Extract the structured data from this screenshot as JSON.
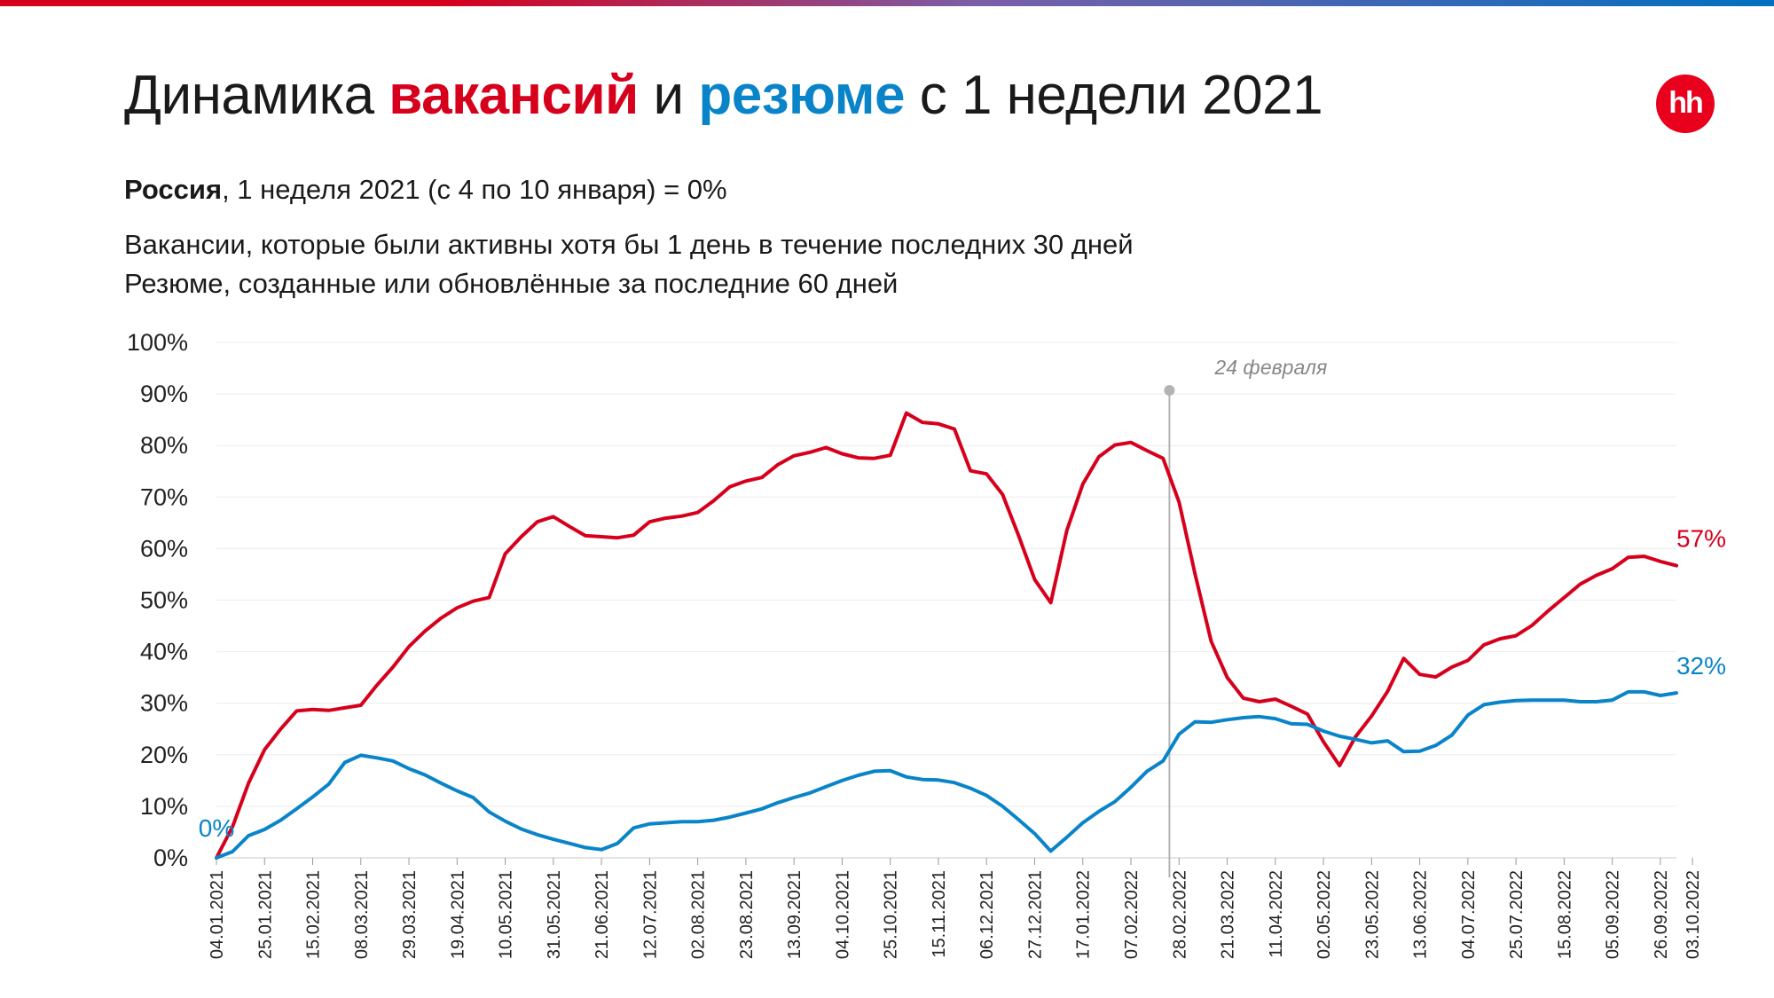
{
  "header": {
    "title_part1": "Динамика ",
    "title_vac": "вакансий",
    "title_part2": " и ",
    "title_res": "резюме",
    "title_part3": " с 1 недели 2021",
    "logo_text": "hh",
    "subtitle_region": "Россия",
    "subtitle_rest": ", 1 неделя 2021 (с 4 по 10 января) = 0%",
    "line1": "Вакансии, которые были активны хотя бы 1 день в течение последних 30 дней",
    "line2": "Резюме, созданные или обновлённые за последние 60 дней"
  },
  "colors": {
    "vacancies": "#d6001c",
    "resumes": "#0a84c8",
    "annotation": "#b3b3b3",
    "grid": "#ececec"
  },
  "chart_data": {
    "type": "line",
    "title": "Динамика вакансий и резюме с 1 недели 2021",
    "xlabel": "",
    "ylabel": "",
    "ylim": [
      0,
      100
    ],
    "y_ticks": [
      "0%",
      "10%",
      "20%",
      "30%",
      "40%",
      "50%",
      "60%",
      "70%",
      "80%",
      "90%",
      "100%"
    ],
    "x_tick_labels": [
      "04.01.2021",
      "25.01.2021",
      "15.02.2021",
      "08.03.2021",
      "29.03.2021",
      "19.04.2021",
      "10.05.2021",
      "31.05.2021",
      "21.06.2021",
      "12.07.2021",
      "02.08.2021",
      "23.08.2021",
      "13.09.2021",
      "04.10.2021",
      "25.10.2021",
      "15.11.2021",
      "06.12.2021",
      "27.12.2021",
      "17.01.2022",
      "07.02.2022",
      "28.02.2022",
      "21.03.2022",
      "11.04.2022",
      "02.05.2022",
      "23.05.2022",
      "13.06.2022",
      "04.07.2022",
      "25.07.2022",
      "15.08.2022",
      "05.09.2022",
      "26.09.2022",
      "03.10.2022"
    ],
    "annotation": {
      "label": "24 февраля",
      "week_index": 59.4
    },
    "start_label": "0%",
    "grid": true,
    "series": [
      {
        "key": "vacancies",
        "end_label": "57%",
        "values": [
          0,
          6,
          14.5,
          21,
          25,
          28.5,
          28.8,
          28.6,
          29.1,
          29.6,
          33.5,
          37,
          41,
          44,
          46.5,
          48.5,
          49.8,
          50.5,
          59,
          62.3,
          65.2,
          66.2,
          64.3,
          62.5,
          62.3,
          62.1,
          62.6,
          65.2,
          65.9,
          66.3,
          67,
          69.3,
          72,
          73.1,
          73.8,
          76.3,
          78,
          78.7,
          79.6,
          78.4,
          77.6,
          77.5,
          78.1,
          86.3,
          84.5,
          84.2,
          83.2,
          75.1,
          74.5,
          70.5,
          62.5,
          54,
          49.5,
          63.5,
          72.5,
          77.8,
          80.1,
          80.6,
          79,
          77.5,
          69,
          55,
          42,
          35,
          31,
          30.3,
          30.8,
          29.4,
          27.9,
          22.5,
          17.9,
          23.5,
          27.5,
          32.3,
          38.7,
          35.6,
          35.1,
          37,
          38.3,
          41.3,
          42.5,
          43.1,
          45.1,
          47.9,
          50.5,
          53.1,
          54.8,
          56.1,
          58.3,
          58.5,
          57.5,
          56.7
        ]
      },
      {
        "key": "resumes",
        "end_label": "32%",
        "values": [
          0,
          1.2,
          4.3,
          5.5,
          7.3,
          9.5,
          11.8,
          14.3,
          18.5,
          19.9,
          19.4,
          18.8,
          17.3,
          16.1,
          14.5,
          13,
          11.7,
          8.9,
          7.1,
          5.6,
          4.5,
          3.6,
          2.8,
          2,
          1.6,
          2.8,
          5.8,
          6.6,
          6.8,
          7,
          7,
          7.3,
          7.9,
          8.7,
          9.5,
          10.7,
          11.7,
          12.6,
          13.8,
          15,
          16,
          16.8,
          16.9,
          15.7,
          15.2,
          15.1,
          14.6,
          13.5,
          12.1,
          10,
          7.4,
          4.7,
          1.3,
          4,
          6.8,
          9,
          10.9,
          13.7,
          16.8,
          18.8,
          24,
          26.4,
          26.3,
          26.8,
          27.2,
          27.4,
          27,
          26,
          25.9,
          24.6,
          23.6,
          23,
          22.3,
          22.7,
          20.6,
          20.7,
          21.8,
          23.8,
          27.7,
          29.7,
          30.2,
          30.5,
          30.6,
          30.6,
          30.6,
          30.3,
          30.3,
          30.6,
          32.2,
          32.2,
          31.5,
          32
        ]
      }
    ]
  }
}
